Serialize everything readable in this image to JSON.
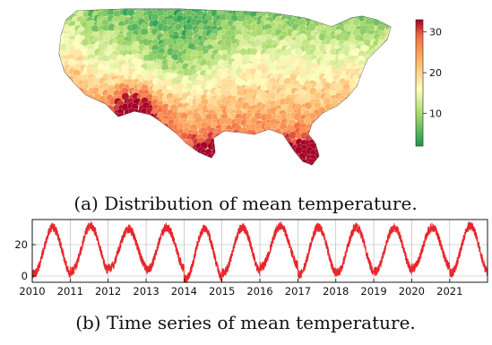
{
  "colors": {
    "cold": "#1a9850",
    "mild": "#ffffbf",
    "hot": "#a50026",
    "line": "#e8262b",
    "grid": "#b0b0b0",
    "axis": "#000000"
  },
  "map_caption": "(a) Distribution of mean temperature.",
  "ts_caption": "(b) Time series of mean temperature.",
  "chart_data": [
    {
      "type": "heatmap",
      "title": "",
      "description_region": "contiguous United States",
      "colormap": "RdYlGn_r",
      "colorbar": {
        "ticks": [
          10,
          20,
          30
        ],
        "tick_labels": [
          "10",
          "20",
          "30"
        ],
        "range": [
          2,
          33
        ]
      }
    },
    {
      "type": "line",
      "title": "",
      "xlabel": "",
      "ylabel": "",
      "x_range": [
        "2010-01-01",
        "2021-12-31"
      ],
      "x_tick_labels": [
        "2010",
        "2011",
        "2012",
        "2013",
        "2014",
        "2015",
        "2016",
        "2017",
        "2018",
        "2019",
        "2020",
        "2021"
      ],
      "ylim": [
        -4,
        36
      ],
      "y_tick_labels": [
        "0",
        "20"
      ],
      "y_ticks": [
        0,
        20
      ],
      "grid": true,
      "series": [
        {
          "values_description": "daily mean temperature",
          "annual_peaks": [
            31,
            32,
            30,
            31,
            30,
            31,
            32,
            31,
            31,
            31,
            31,
            32
          ],
          "annual_troughs": [
            1,
            3,
            5,
            4,
            -2,
            2,
            6,
            1,
            2,
            3,
            5,
            2
          ]
        }
      ]
    }
  ]
}
